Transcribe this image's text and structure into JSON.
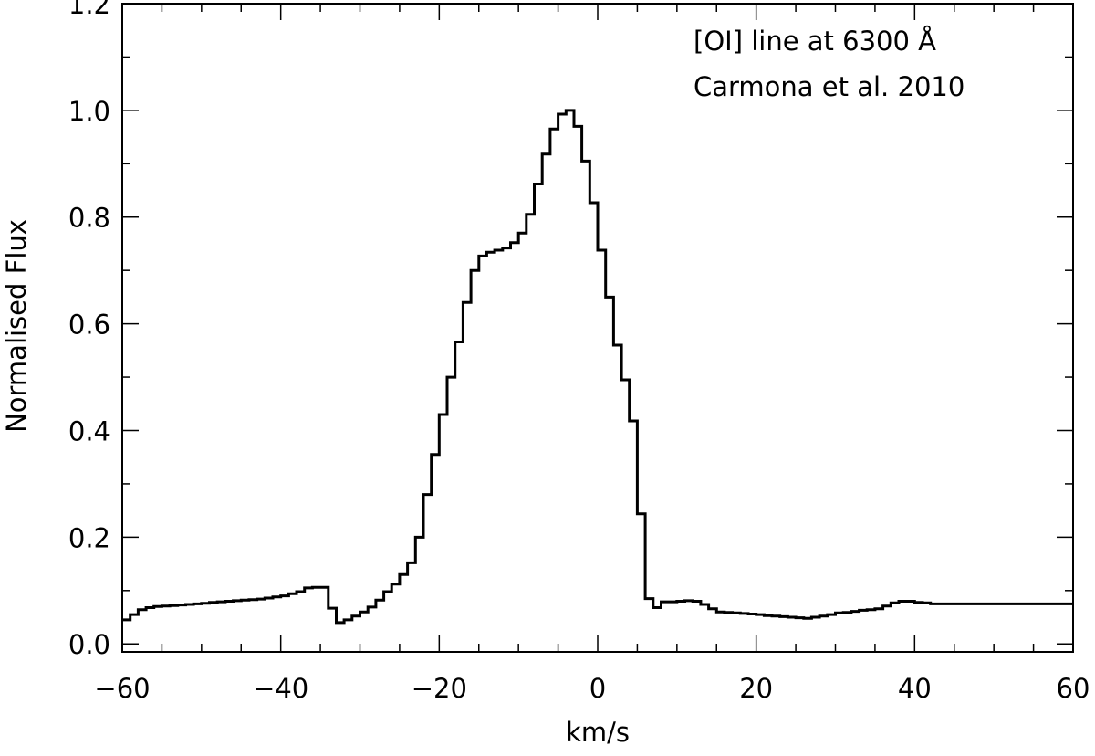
{
  "chart_data": {
    "type": "line",
    "style": "step",
    "title": "",
    "xlabel": "km/s",
    "ylabel": "Normalised Flux",
    "xlim": [
      -60,
      60
    ],
    "ylim": [
      -0.015,
      1.2
    ],
    "xticks": [
      -60,
      -40,
      -20,
      0,
      20,
      40,
      60
    ],
    "xtick_labels": [
      "−60",
      "−40",
      "−20",
      "0",
      "20",
      "40",
      "60"
    ],
    "yticks": [
      0.0,
      0.2,
      0.4,
      0.6,
      0.8,
      1.0,
      1.2
    ],
    "ytick_labels": [
      "0.0",
      "0.2",
      "0.4",
      "0.6",
      "0.8",
      "1.0",
      "1.2"
    ],
    "x_minor_step": 5,
    "y_minor_step": 0.1,
    "grid": false,
    "annotations": [
      "[OI] line at 6300 Å",
      "Carmona et al. 2010"
    ],
    "series": [
      {
        "x": [
          -60,
          -59,
          -58,
          -57,
          -56,
          -55,
          -54,
          -53,
          -52,
          -51,
          -50,
          -49,
          -48,
          -47,
          -46,
          -45,
          -44,
          -43,
          -42,
          -41,
          -40,
          -39,
          -38,
          -37,
          -36,
          -35,
          -34,
          -33,
          -32,
          -31,
          -30,
          -29,
          -28,
          -27,
          -26,
          -25,
          -24,
          -23,
          -22,
          -21,
          -20,
          -19,
          -18,
          -17,
          -16,
          -15,
          -14,
          -13,
          -12,
          -11,
          -10,
          -9,
          -8,
          -7,
          -6,
          -5,
          -4,
          -3,
          -2,
          -1,
          0,
          1,
          2,
          3,
          4,
          5,
          6,
          7,
          8,
          9,
          10,
          11,
          12,
          13,
          14,
          15,
          16,
          17,
          18,
          19,
          20,
          21,
          22,
          23,
          24,
          25,
          26,
          27,
          28,
          29,
          30,
          31,
          32,
          33,
          34,
          35,
          36,
          37,
          38,
          39,
          40,
          41,
          42,
          43,
          44,
          45,
          46,
          47,
          48,
          49,
          50,
          51,
          52,
          53,
          54,
          55,
          56,
          57,
          58,
          59
        ],
        "y": [
          0.045,
          0.055,
          0.064,
          0.068,
          0.07,
          0.071,
          0.072,
          0.073,
          0.074,
          0.075,
          0.076,
          0.078,
          0.079,
          0.08,
          0.081,
          0.082,
          0.083,
          0.084,
          0.086,
          0.088,
          0.09,
          0.094,
          0.098,
          0.105,
          0.106,
          0.106,
          0.067,
          0.04,
          0.045,
          0.052,
          0.06,
          0.069,
          0.082,
          0.098,
          0.112,
          0.13,
          0.152,
          0.2,
          0.28,
          0.355,
          0.43,
          0.5,
          0.566,
          0.64,
          0.7,
          0.727,
          0.734,
          0.738,
          0.742,
          0.752,
          0.77,
          0.805,
          0.862,
          0.918,
          0.965,
          0.993,
          1.0,
          0.97,
          0.905,
          0.827,
          0.738,
          0.65,
          0.56,
          0.495,
          0.418,
          0.244,
          0.085,
          0.068,
          0.079,
          0.079,
          0.08,
          0.081,
          0.08,
          0.074,
          0.066,
          0.06,
          0.059,
          0.058,
          0.057,
          0.056,
          0.055,
          0.053,
          0.052,
          0.051,
          0.05,
          0.049,
          0.048,
          0.05,
          0.052,
          0.055,
          0.058,
          0.059,
          0.061,
          0.063,
          0.064,
          0.066,
          0.071,
          0.077,
          0.08,
          0.08,
          0.078,
          0.077,
          0.075,
          0.075,
          0.075,
          0.075,
          0.075,
          0.075,
          0.075,
          0.075,
          0.075,
          0.075,
          0.075,
          0.075,
          0.075,
          0.075,
          0.075,
          0.075,
          0.075,
          0.075
        ]
      }
    ]
  }
}
